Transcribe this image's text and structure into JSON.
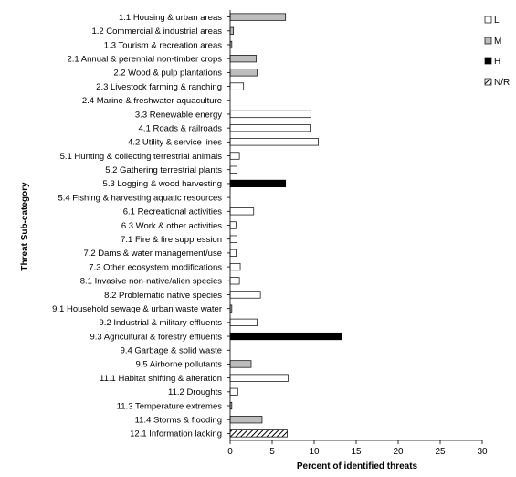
{
  "chart_data": {
    "type": "bar",
    "orientation": "horizontal",
    "xlabel": "Percent of identified threats",
    "ylabel": "Threat Sub-category",
    "xlim": [
      0,
      30
    ],
    "xticks": [
      0,
      5,
      10,
      15,
      20,
      25,
      30
    ],
    "grid": false,
    "legend_position": "right",
    "legend": [
      {
        "key": "L",
        "label": "L",
        "fill": "#ffffff",
        "pattern": "none"
      },
      {
        "key": "M",
        "label": "M",
        "fill": "#bdbdbd",
        "pattern": "none"
      },
      {
        "key": "H",
        "label": "H",
        "fill": "#000000",
        "pattern": "none"
      },
      {
        "key": "NR",
        "label": "N/R",
        "fill": "#ffffff",
        "pattern": "hatch"
      }
    ],
    "bars": [
      {
        "category": "1.1 Housing & urban areas",
        "value": 6.6,
        "severity": "M"
      },
      {
        "category": "1.2 Commercial & industrial areas",
        "value": 0.4,
        "severity": "M"
      },
      {
        "category": "1.3 Tourism & recreation areas",
        "value": 0.2,
        "severity": "M"
      },
      {
        "category": "2.1 Annual & perennial non-timber crops",
        "value": 3.1,
        "severity": "M"
      },
      {
        "category": "2.2 Wood & pulp plantations",
        "value": 3.2,
        "severity": "M"
      },
      {
        "category": "2.3 Livestock farming & ranching",
        "value": 1.6,
        "severity": "L"
      },
      {
        "category": "2.4 Marine & freshwater aquaculture",
        "value": 0,
        "severity": "L"
      },
      {
        "category": "3.3 Renewable energy",
        "value": 9.6,
        "severity": "L"
      },
      {
        "category": "4.1 Roads & railroads",
        "value": 9.5,
        "severity": "L"
      },
      {
        "category": "4.2 Utility & service lines",
        "value": 10.5,
        "severity": "L"
      },
      {
        "category": "5.1 Hunting & collecting terrestrial animals",
        "value": 1.1,
        "severity": "L"
      },
      {
        "category": "5.2 Gathering terrestrial plants",
        "value": 0.8,
        "severity": "L"
      },
      {
        "category": "5.3 Logging & wood harvesting",
        "value": 6.6,
        "severity": "H"
      },
      {
        "category": "5.4 Fishing & harvesting aquatic resources",
        "value": 0,
        "severity": "L"
      },
      {
        "category": "6.1 Recreational activities",
        "value": 2.8,
        "severity": "L"
      },
      {
        "category": "6.3 Work & other activities",
        "value": 0.7,
        "severity": "L"
      },
      {
        "category": "7.1 Fire & fire suppression",
        "value": 0.8,
        "severity": "L"
      },
      {
        "category": "7.2 Dams & water management/use",
        "value": 0.7,
        "severity": "L"
      },
      {
        "category": "7.3 Other ecosystem modifications",
        "value": 1.2,
        "severity": "L"
      },
      {
        "category": "8.1 Invasive non-native/alien species",
        "value": 1.1,
        "severity": "L"
      },
      {
        "category": "8.2 Problematic native species",
        "value": 3.6,
        "severity": "L"
      },
      {
        "category": "9.1 Household sewage & urban waste water",
        "value": 0.2,
        "severity": "M"
      },
      {
        "category": "9.2 Industrial & military effluents",
        "value": 3.2,
        "severity": "L"
      },
      {
        "category": "9.3 Agricultural & forestry effluents",
        "value": 13.3,
        "severity": "H"
      },
      {
        "category": "9.4 Garbage & solid waste",
        "value": 0,
        "severity": "L"
      },
      {
        "category": "9.5 Airborne pollutants",
        "value": 2.5,
        "severity": "M"
      },
      {
        "category": "11.1 Habitat shifting & alteration",
        "value": 6.9,
        "severity": "L"
      },
      {
        "category": "11.2 Droughts",
        "value": 0.9,
        "severity": "L"
      },
      {
        "category": "11.3 Temperature extremes",
        "value": 0.2,
        "severity": "M"
      },
      {
        "category": "11.4 Storms & flooding",
        "value": 3.8,
        "severity": "M"
      },
      {
        "category": "12.1 Information lacking",
        "value": 6.8,
        "severity": "NR"
      }
    ]
  }
}
